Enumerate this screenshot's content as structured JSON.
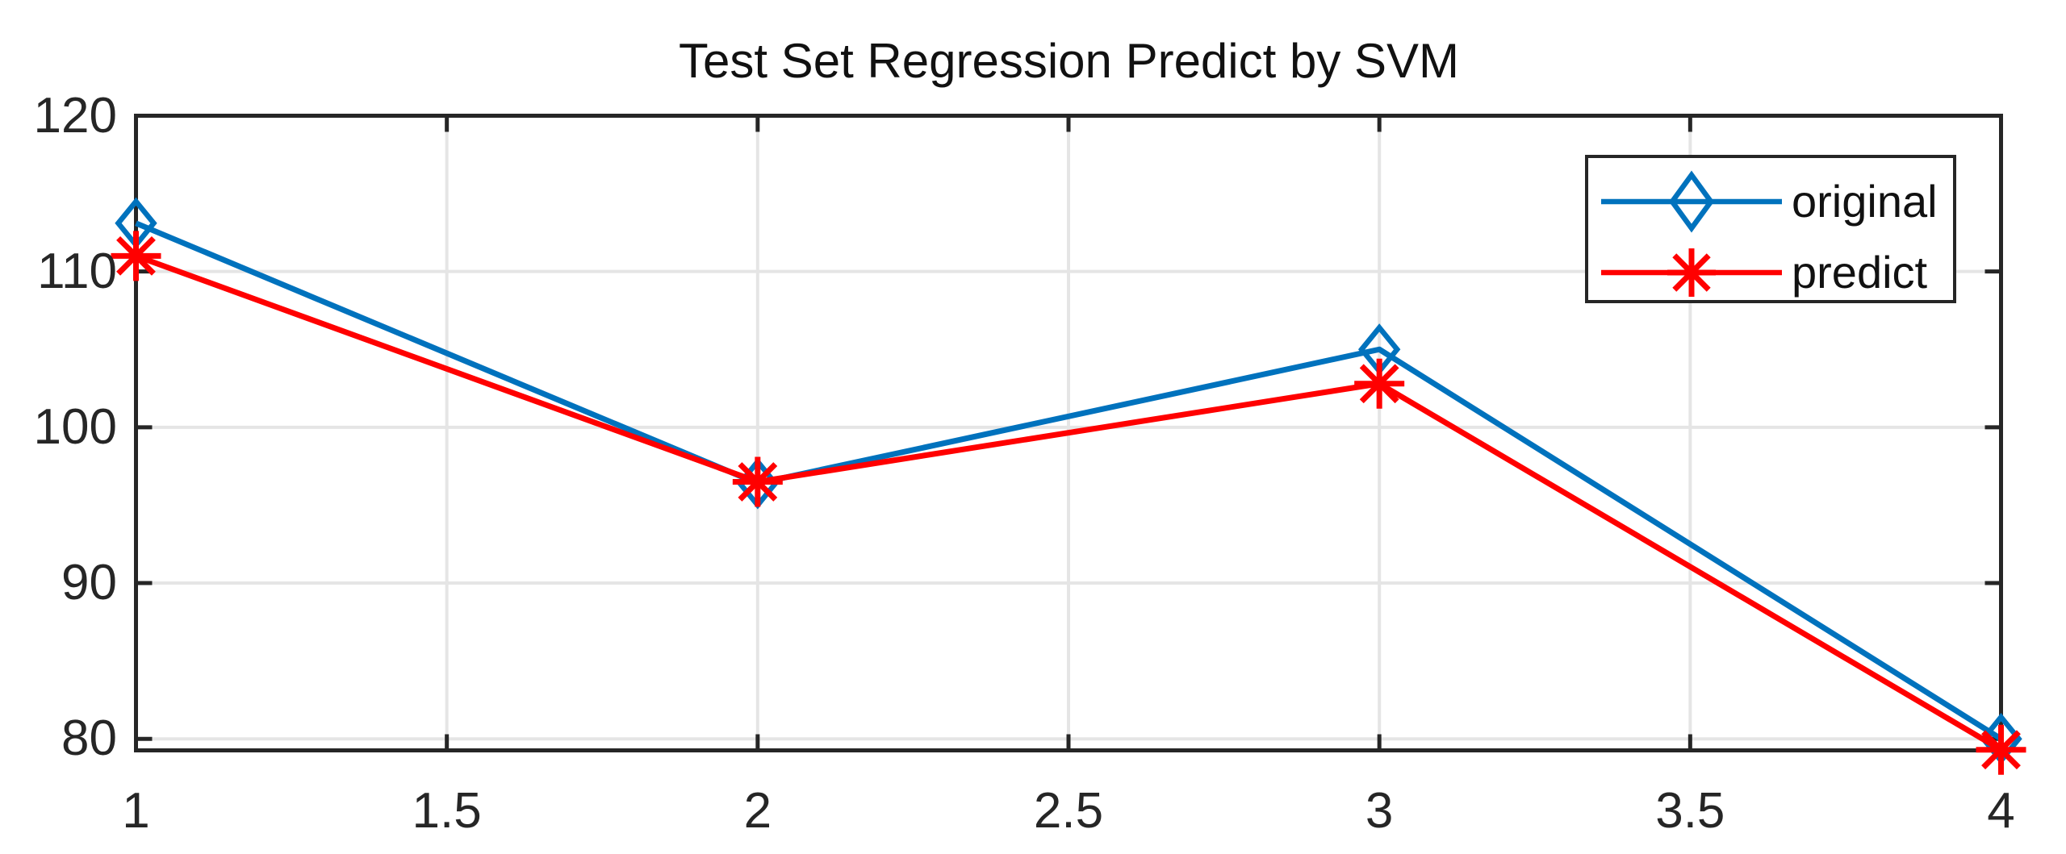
{
  "figure": {
    "background": "#FFFFFF"
  },
  "chart_data": {
    "type": "line",
    "title": "Test Set Regression Predict by SVM",
    "x": [
      1,
      2,
      3,
      4
    ],
    "series": [
      {
        "name": "original",
        "color": "#0072BD",
        "marker": "open-diamond",
        "values": [
          113.1,
          96.4,
          105.0,
          80.0
        ]
      },
      {
        "name": "predict",
        "color": "#FF0000",
        "marker": "asterisk",
        "values": [
          111.0,
          96.5,
          102.8,
          79.3
        ]
      }
    ],
    "xlabel": "",
    "ylabel": "",
    "xticks": {
      "values": [
        1,
        1.5,
        2,
        2.5,
        3,
        3.5,
        4
      ],
      "labels": [
        "1",
        "1.5",
        "2",
        "2.5",
        "3",
        "3.5",
        "4"
      ]
    },
    "yticks": {
      "values": [
        80,
        90,
        100,
        110,
        120
      ],
      "labels": [
        "80",
        "90",
        "100",
        "110",
        "120"
      ]
    },
    "xlim": [
      1,
      4
    ],
    "ylim": [
      79.26,
      120
    ],
    "grid": true,
    "box": true,
    "tick_direction": "in",
    "legend": {
      "position": "northeast",
      "entries": [
        "original",
        "predict"
      ]
    },
    "colors": {
      "axis": "#262626",
      "grid": "#E5E5E5",
      "tick_text": "#262626",
      "title_text": "#111111",
      "legend_border": "#262626",
      "background": "#FFFFFF"
    }
  }
}
